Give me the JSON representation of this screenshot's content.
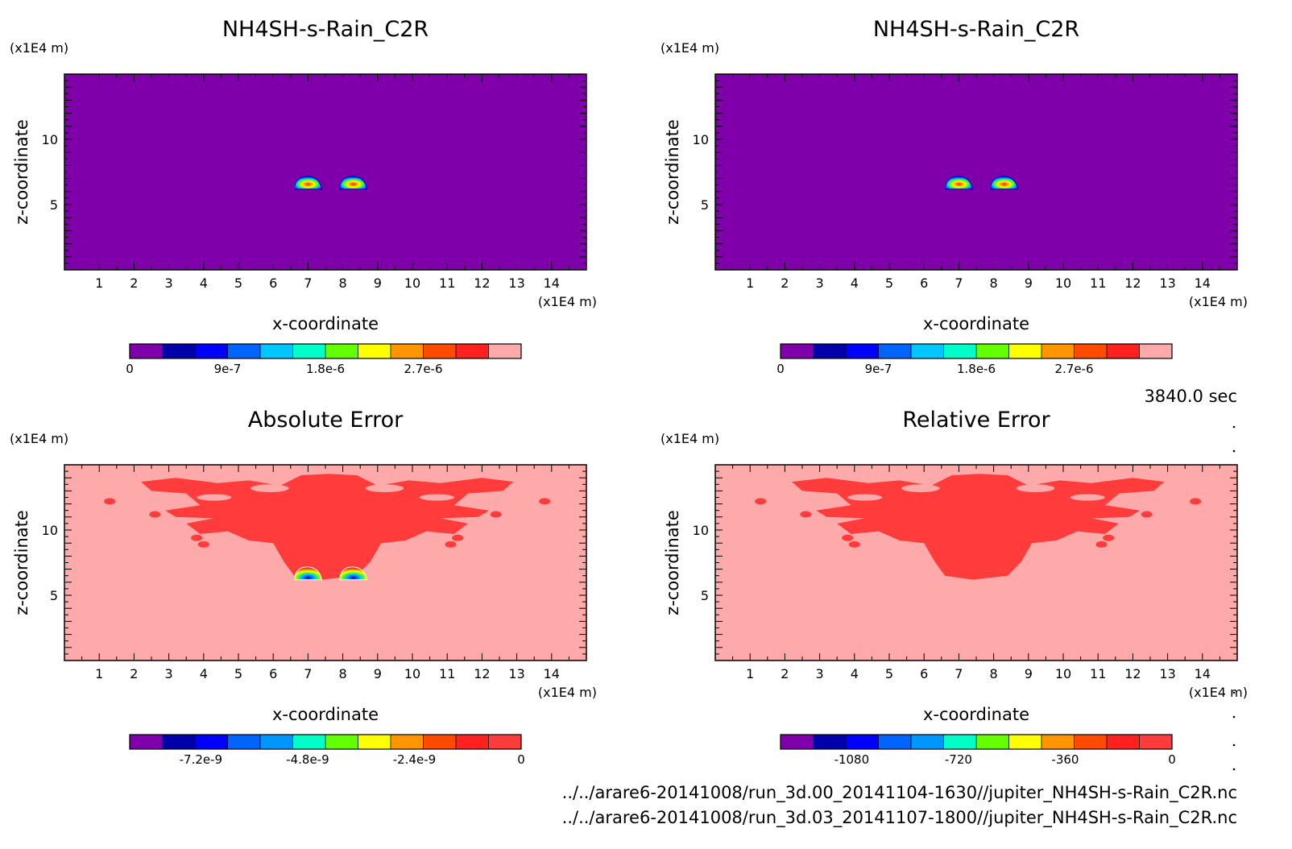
{
  "figure": {
    "time_label": "3840.0 sec",
    "files": [
      "../../arare6-20141008/run_3d.00_20141104-1630//jupiter_NH4SH-s-Rain_C2R.nc",
      "../../arare6-20141008/run_3d.03_20141107-1800//jupiter_NH4SH-s-Rain_C2R.nc"
    ]
  },
  "chart_data": [
    {
      "type": "heatmap",
      "title": "NH4SH-s-Rain_C2R",
      "xlabel": "x-coordinate",
      "ylabel": "z-coordinate",
      "x_unit": "(x1E4 m)",
      "y_unit": "(x1E4 m)",
      "xlim": [
        0,
        15
      ],
      "ylim": [
        0,
        15
      ],
      "xticks": [
        "1",
        "2",
        "3",
        "4",
        "5",
        "6",
        "7",
        "8",
        "9",
        "10",
        "11",
        "12",
        "13",
        "14"
      ],
      "yticks": [
        "5",
        "10"
      ],
      "field": "concentrated-cells",
      "cells": [
        {
          "x": 7.0,
          "z": 6.5
        },
        {
          "x": 8.3,
          "z": 6.5
        }
      ],
      "colorbar": {
        "colors": [
          "#7f00aa",
          "#0000aa",
          "#0000ff",
          "#0064ff",
          "#00c8ff",
          "#00ffc8",
          "#64ff00",
          "#ffff00",
          "#ff9600",
          "#ff4b00",
          "#ff2020",
          "#ffaaaa"
        ],
        "tick_values": [
          0,
          9e-07,
          1.8e-06,
          2.7e-06
        ],
        "tick_labels": [
          "0",
          "9e-7",
          "1.8e-6",
          "2.7e-6"
        ],
        "range": [
          0,
          3.6e-06
        ]
      }
    },
    {
      "type": "heatmap",
      "title": "NH4SH-s-Rain_C2R",
      "xlabel": "x-coordinate",
      "ylabel": "z-coordinate",
      "x_unit": "(x1E4 m)",
      "y_unit": "(x1E4 m)",
      "xlim": [
        0,
        15
      ],
      "ylim": [
        0,
        15
      ],
      "xticks": [
        "1",
        "2",
        "3",
        "4",
        "5",
        "6",
        "7",
        "8",
        "9",
        "10",
        "11",
        "12",
        "13",
        "14"
      ],
      "yticks": [
        "5",
        "10"
      ],
      "field": "concentrated-cells",
      "cells": [
        {
          "x": 7.0,
          "z": 6.5
        },
        {
          "x": 8.3,
          "z": 6.5
        }
      ],
      "colorbar": {
        "colors": [
          "#7f00aa",
          "#0000aa",
          "#0000ff",
          "#0064ff",
          "#00c8ff",
          "#00ffc8",
          "#64ff00",
          "#ffff00",
          "#ff9600",
          "#ff4b00",
          "#ff2020",
          "#ffaaaa"
        ],
        "tick_values": [
          0,
          9e-07,
          1.8e-06,
          2.7e-06
        ],
        "tick_labels": [
          "0",
          "9e-7",
          "1.8e-6",
          "2.7e-6"
        ],
        "range": [
          0,
          3.6e-06
        ]
      }
    },
    {
      "type": "heatmap",
      "title": "Absolute Error",
      "xlabel": "x-coordinate",
      "ylabel": "z-coordinate",
      "x_unit": "(x1E4 m)",
      "y_unit": "(x1E4 m)",
      "xlim": [
        0,
        15
      ],
      "ylim": [
        0,
        15
      ],
      "xticks": [
        "1",
        "2",
        "3",
        "4",
        "5",
        "6",
        "7",
        "8",
        "9",
        "10",
        "11",
        "12",
        "13",
        "14"
      ],
      "yticks": [
        "5",
        "10"
      ],
      "field": "error-region-with-cells",
      "cells": [
        {
          "x": 7.0,
          "z": 6.5
        },
        {
          "x": 8.3,
          "z": 6.5
        }
      ],
      "colorbar": {
        "colors": [
          "#7f00aa",
          "#0000aa",
          "#0000ff",
          "#0064ff",
          "#0096ff",
          "#00ffc8",
          "#64ff00",
          "#ffff00",
          "#ff9600",
          "#ff4b00",
          "#ff2020",
          "#ff3b3b"
        ],
        "tick_values": [
          -7.2e-09,
          -4.8e-09,
          -2.4e-09,
          0
        ],
        "tick_labels": [
          "-7.2e-9",
          "-4.8e-9",
          "-2.4e-9",
          "0"
        ],
        "range": [
          -8.8e-09,
          0
        ]
      }
    },
    {
      "type": "heatmap",
      "title": "Relative Error",
      "xlabel": "x-coordinate",
      "ylabel": "z-coordinate",
      "x_unit": "(x1E4 m)",
      "y_unit": "(x1E4 m)",
      "xlim": [
        0,
        15
      ],
      "ylim": [
        0,
        15
      ],
      "xticks": [
        "1",
        "2",
        "3",
        "4",
        "5",
        "6",
        "7",
        "8",
        "9",
        "10",
        "11",
        "12",
        "13",
        "14"
      ],
      "yticks": [
        "5",
        "10"
      ],
      "field": "error-region",
      "cells": [],
      "colorbar": {
        "colors": [
          "#7f00aa",
          "#0000aa",
          "#0000ff",
          "#0064ff",
          "#0096ff",
          "#00ffc8",
          "#64ff00",
          "#ffff00",
          "#ff9600",
          "#ff4b00",
          "#ff2020",
          "#ff3b3b"
        ],
        "tick_values": [
          -1080,
          -720,
          -360,
          0
        ],
        "tick_labels": [
          "-1080",
          "-720",
          "-360",
          "0"
        ],
        "range": [
          -1320,
          0
        ]
      }
    }
  ]
}
